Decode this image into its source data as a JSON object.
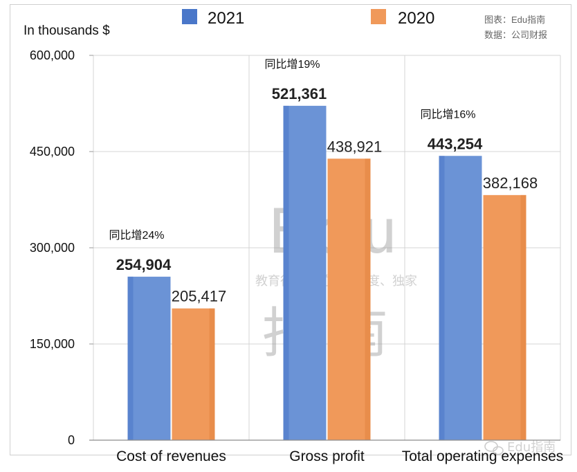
{
  "chart_data": {
    "type": "bar",
    "unit_label": "In thousands $",
    "categories": [
      "Cost of revenues",
      "Gross profit",
      "Total operating expenses"
    ],
    "series": [
      {
        "name": "2021",
        "color": "#6b93d6",
        "values": [
          254904,
          521361,
          443254
        ]
      },
      {
        "name": "2020",
        "color": "#f0995a",
        "values": [
          205417,
          438921,
          382168
        ]
      }
    ],
    "value_labels_2021": [
      "254,904",
      "521,361",
      "443,254"
    ],
    "value_labels_2020": [
      "205,417",
      "438,921",
      "382,168"
    ],
    "growth_labels": [
      "同比增24%",
      "同比增19%",
      "同比增16%"
    ],
    "ylim": [
      0,
      600000
    ],
    "yticks": [
      0,
      150000,
      300000,
      450000,
      600000
    ],
    "ytick_labels": [
      "0",
      "150,000",
      "300,000",
      "450,000",
      "600,000"
    ],
    "grid": true,
    "legend_position": "top"
  },
  "source": {
    "line1": "图表：Edu指南",
    "line2": "数据：公司财报"
  },
  "watermark": {
    "title": "Edu",
    "tagline": "教育行业，前沿、深度、独家",
    "brand": "指南",
    "badge": "Edu指南"
  },
  "colors": {
    "grid": "#d4d4d4",
    "bar_2021": "#6b93d6",
    "bar_2021_edge": "#4a77c9",
    "bar_2020": "#f0995a",
    "bar_2020_edge": "#e2843f"
  }
}
